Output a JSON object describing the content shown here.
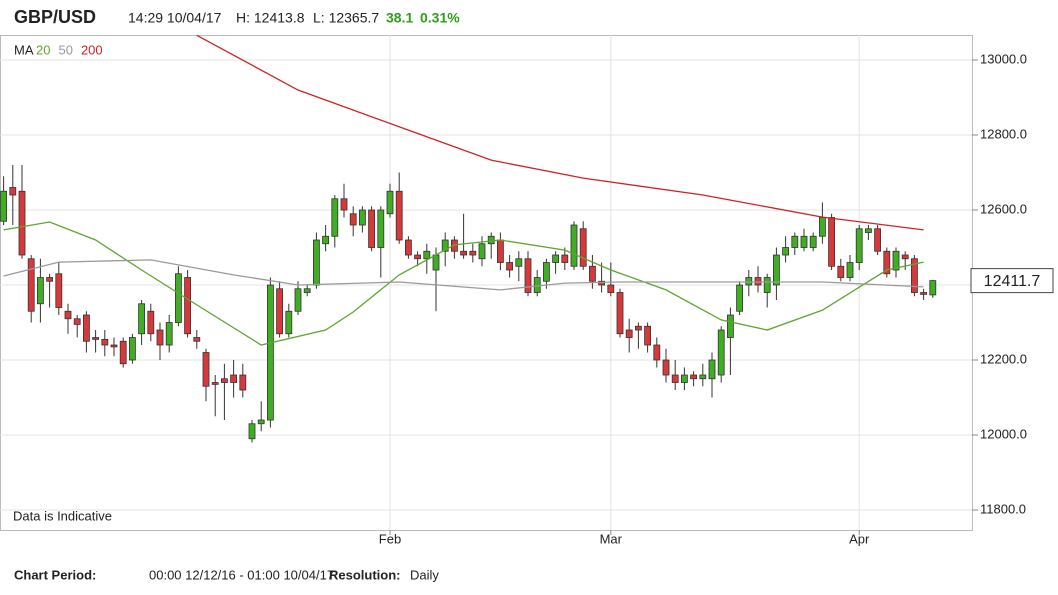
{
  "chart_data": {
    "type": "candlestick",
    "title": "GBP/USD",
    "timestamp": "14:29 10/04/17",
    "high_label": "H: 12413.8",
    "low_label": "L: 12365.7",
    "change": "38.1",
    "change_pct": "0.31%",
    "note": "Data is Indicative",
    "ma_label": "MA",
    "last_price": 12411.7,
    "footer": {
      "period_label": "Chart Period:",
      "period": "00:00 12/12/16 - 01:00 10/04/17",
      "resolution_label": "Resolution:",
      "resolution": "Daily"
    },
    "up_color": "#3fae23",
    "down_color": "#d7393b",
    "ylim": [
      11746.7,
      13066.7
    ],
    "yticks": [
      {
        "value": 11800,
        "label": "11800.0"
      },
      {
        "value": 12000,
        "label": "12000.0"
      },
      {
        "value": 12200,
        "label": "12200.0"
      },
      {
        "value": 12400,
        "label": "12400.0"
      },
      {
        "value": 12600,
        "label": "12600.0"
      },
      {
        "value": 12800,
        "label": "12800.0"
      },
      {
        "value": 13000,
        "label": "13000.0"
      }
    ],
    "grid": true,
    "categories": [
      null,
      null,
      null,
      null,
      null,
      null,
      null,
      null,
      null,
      null,
      null,
      null,
      null,
      null,
      null,
      null,
      null,
      null,
      null,
      null,
      null,
      null,
      null,
      null,
      null,
      null,
      null,
      null,
      null,
      null,
      null,
      null,
      null,
      null,
      null,
      null,
      null,
      null,
      null,
      null,
      null,
      null,
      "Feb",
      null,
      null,
      null,
      null,
      null,
      null,
      null,
      null,
      null,
      null,
      null,
      null,
      null,
      null,
      null,
      null,
      null,
      null,
      null,
      null,
      null,
      null,
      null,
      "Mar",
      null,
      null,
      null,
      null,
      null,
      null,
      null,
      null,
      null,
      null,
      null,
      null,
      null,
      null,
      null,
      null,
      null,
      null,
      null,
      null,
      null,
      null,
      null,
      null,
      null,
      null,
      "Apr",
      null,
      null,
      null,
      null,
      null,
      null,
      null,
      null
    ],
    "open": [
      12570,
      12660,
      12650,
      12470,
      12350,
      12420,
      12430,
      12330,
      12310,
      12320,
      12260,
      12255,
      12240,
      12250,
      12200,
      12270,
      12330,
      12280,
      12240,
      12300,
      12420,
      12260,
      12220,
      12140,
      12150,
      12160,
      12160,
      11990,
      12030,
      12040,
      12390,
      12270,
      12330,
      12380,
      12400,
      12510,
      12530,
      12630,
      12590,
      12560,
      12600,
      12500,
      12590,
      12650,
      12520,
      12480,
      12470,
      12440,
      12490,
      12520,
      12490,
      12490,
      12470,
      12510,
      12520,
      12460,
      12450,
      12470,
      12380,
      12410,
      12460,
      12480,
      12450,
      12550,
      12450,
      12410,
      12400,
      12380,
      12280,
      12290,
      12290,
      12240,
      12200,
      12160,
      12140,
      12160,
      12150,
      12150,
      12160,
      12260,
      12330,
      12400,
      12420,
      12380,
      12400,
      12480,
      12500,
      12500,
      12500,
      12530,
      12580,
      12450,
      12420,
      12460,
      12540,
      12550,
      12490,
      12440,
      12480,
      12470,
      12380,
      12373.6
    ],
    "high": [
      12690,
      12720,
      12720,
      12480,
      12470,
      12430,
      12460,
      12350,
      12320,
      12330,
      12280,
      12280,
      12260,
      12260,
      12270,
      12360,
      12350,
      12300,
      12320,
      12450,
      12440,
      12280,
      12230,
      12160,
      12190,
      12200,
      12190,
      12040,
      12090,
      12420,
      12410,
      12350,
      12410,
      12400,
      12540,
      12560,
      12640,
      12670,
      12610,
      12610,
      12610,
      12610,
      12670,
      12700,
      12530,
      12490,
      12510,
      12500,
      12540,
      12530,
      12590,
      12510,
      12530,
      12540,
      12540,
      12480,
      12490,
      12490,
      12440,
      12470,
      12490,
      12500,
      12570,
      12570,
      12480,
      12460,
      12460,
      12390,
      12310,
      12300,
      12300,
      12260,
      12230,
      12200,
      12180,
      12170,
      12190,
      12220,
      12290,
      12340,
      12410,
      12440,
      12450,
      12430,
      12500,
      12530,
      12540,
      12550,
      12540,
      12620,
      12590,
      12470,
      12480,
      12560,
      12560,
      12560,
      12500,
      12500,
      12490,
      12480,
      12390,
      12413.8
    ],
    "low": [
      12560,
      12560,
      12470,
      12300,
      12300,
      12340,
      12320,
      12270,
      12260,
      12220,
      12220,
      12210,
      12210,
      12180,
      12190,
      12240,
      12250,
      12200,
      12220,
      12290,
      12260,
      12230,
      12090,
      12050,
      12040,
      12100,
      12100,
      11980,
      12010,
      12020,
      12260,
      12260,
      12320,
      12370,
      12390,
      12490,
      12500,
      12580,
      12530,
      12540,
      12490,
      12420,
      12580,
      12510,
      12470,
      12450,
      12430,
      12330,
      12450,
      12470,
      12470,
      12460,
      12450,
      12470,
      12440,
      12420,
      12410,
      12370,
      12370,
      12390,
      12430,
      12440,
      12440,
      12440,
      12390,
      12380,
      12370,
      12260,
      12220,
      12230,
      12220,
      12180,
      12140,
      12120,
      12120,
      12130,
      12130,
      12100,
      12140,
      12160,
      12320,
      12370,
      12380,
      12340,
      12360,
      12460,
      12480,
      12490,
      12490,
      12510,
      12440,
      12410,
      12410,
      12440,
      12520,
      12480,
      12420,
      12420,
      12440,
      12370,
      12360,
      12365.7
    ],
    "close": [
      12650,
      12640,
      12480,
      12330,
      12420,
      12410,
      12340,
      12310,
      12295,
      12250,
      12255,
      12240,
      12235,
      12190,
      12260,
      12350,
      12270,
      12240,
      12300,
      12430,
      12270,
      12250,
      12130,
      12135,
      12140,
      12140,
      12120,
      12030,
      12040,
      12400,
      12270,
      12330,
      12390,
      12390,
      12520,
      12530,
      12630,
      12600,
      12560,
      12600,
      12500,
      12600,
      12650,
      12520,
      12480,
      12470,
      12490,
      12480,
      12520,
      12490,
      12480,
      12480,
      12510,
      12530,
      12460,
      12440,
      12470,
      12380,
      12420,
      12460,
      12480,
      12460,
      12560,
      12450,
      12410,
      12400,
      12380,
      12270,
      12260,
      12280,
      12240,
      12200,
      12160,
      12140,
      12160,
      12150,
      12160,
      12200,
      12280,
      12320,
      12400,
      12420,
      12400,
      12420,
      12480,
      12500,
      12530,
      12530,
      12530,
      12580,
      12450,
      12420,
      12460,
      12550,
      12550,
      12490,
      12430,
      12490,
      12470,
      12380,
      12375,
      12411.7
    ],
    "series": [
      {
        "name": "20",
        "color": "#5ea52f",
        "x": [
          0,
          5,
          10,
          15,
          21,
          28,
          35,
          38,
          43,
          49,
          54,
          61,
          66,
          72,
          78,
          83,
          89,
          96,
          100
        ],
        "values": [
          12547,
          12568,
          12520,
          12440,
          12347,
          12240,
          12280,
          12328,
          12427,
          12507,
          12520,
          12493,
          12440,
          12387,
          12307,
          12280,
          12333,
          12440,
          12461
        ]
      },
      {
        "name": "50",
        "color": "#9a9a9a",
        "x": [
          0,
          6,
          16,
          25,
          32,
          43,
          54,
          61,
          67,
          78,
          89,
          100
        ],
        "values": [
          12424,
          12461,
          12467,
          12427,
          12400,
          12408,
          12387,
          12405,
          12408,
          12408,
          12408,
          12395
        ]
      },
      {
        "name": "200",
        "color": "#cc2424",
        "x": [
          21,
          32,
          44,
          53,
          63,
          76,
          89,
          100
        ],
        "values": [
          13066,
          12920,
          12813,
          12733,
          12685,
          12640,
          12581,
          12547
        ]
      }
    ]
  }
}
